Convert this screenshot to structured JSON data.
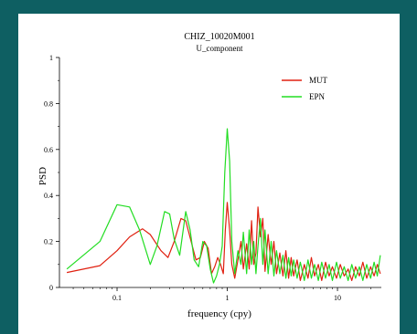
{
  "colors": {
    "background": "#0e5f62",
    "panel": "#ffffff",
    "mut": "#e02010",
    "epn": "#22dd22"
  },
  "chart_data": {
    "type": "line",
    "title": "CHIZ_10020M001",
    "subtitle": "U_component",
    "xlabel": "frequency (cpy)",
    "ylabel": "PSD",
    "xscale": "log",
    "xlim": [
      0.03,
      25
    ],
    "ylim": [
      0,
      1
    ],
    "yticks": [
      0,
      0.2,
      0.4,
      0.6,
      0.8,
      1
    ],
    "ytick_labels": [
      "0",
      "0.2",
      "0.4",
      "0.6",
      "0.8",
      "1"
    ],
    "xticks": [
      0.1,
      1,
      10
    ],
    "xtick_labels": [
      "0.1",
      "1",
      "10"
    ],
    "grid": false,
    "legend_position": "top-right",
    "series": [
      {
        "name": "MUT",
        "color": "#e02010",
        "points": [
          [
            0.035,
            0.065
          ],
          [
            0.07,
            0.095
          ],
          [
            0.1,
            0.16
          ],
          [
            0.13,
            0.22
          ],
          [
            0.17,
            0.255
          ],
          [
            0.2,
            0.23
          ],
          [
            0.25,
            0.16
          ],
          [
            0.29,
            0.13
          ],
          [
            0.33,
            0.2
          ],
          [
            0.38,
            0.3
          ],
          [
            0.42,
            0.29
          ],
          [
            0.47,
            0.2
          ],
          [
            0.52,
            0.12
          ],
          [
            0.57,
            0.13
          ],
          [
            0.62,
            0.2
          ],
          [
            0.67,
            0.17
          ],
          [
            0.72,
            0.06
          ],
          [
            0.77,
            0.09
          ],
          [
            0.82,
            0.13
          ],
          [
            0.87,
            0.1
          ],
          [
            0.92,
            0.06
          ],
          [
            0.96,
            0.25
          ],
          [
            1.0,
            0.37
          ],
          [
            1.05,
            0.25
          ],
          [
            1.1,
            0.1
          ],
          [
            1.17,
            0.04
          ],
          [
            1.25,
            0.12
          ],
          [
            1.33,
            0.2
          ],
          [
            1.4,
            0.08
          ],
          [
            1.5,
            0.19
          ],
          [
            1.58,
            0.08
          ],
          [
            1.66,
            0.29
          ],
          [
            1.74,
            0.1
          ],
          [
            1.82,
            0.15
          ],
          [
            1.9,
            0.35
          ],
          [
            2.0,
            0.22
          ],
          [
            2.1,
            0.3
          ],
          [
            2.2,
            0.07
          ],
          [
            2.35,
            0.23
          ],
          [
            2.5,
            0.1
          ],
          [
            2.65,
            0.2
          ],
          [
            2.8,
            0.06
          ],
          [
            3.0,
            0.15
          ],
          [
            3.2,
            0.05
          ],
          [
            3.4,
            0.16
          ],
          [
            3.6,
            0.04
          ],
          [
            3.8,
            0.13
          ],
          [
            4.0,
            0.05
          ],
          [
            4.3,
            0.12
          ],
          [
            4.6,
            0.03
          ],
          [
            5.0,
            0.1
          ],
          [
            5.4,
            0.04
          ],
          [
            5.8,
            0.13
          ],
          [
            6.2,
            0.05
          ],
          [
            6.7,
            0.1
          ],
          [
            7.2,
            0.03
          ],
          [
            7.8,
            0.11
          ],
          [
            8.4,
            0.05
          ],
          [
            9.0,
            0.09
          ],
          [
            9.8,
            0.04
          ],
          [
            10.6,
            0.1
          ],
          [
            11.5,
            0.05
          ],
          [
            12.5,
            0.08
          ],
          [
            13.5,
            0.03
          ],
          [
            14.6,
            0.09
          ],
          [
            15.8,
            0.05
          ],
          [
            17.0,
            0.11
          ],
          [
            18.4,
            0.04
          ],
          [
            20.0,
            0.09
          ],
          [
            21.5,
            0.05
          ],
          [
            23.0,
            0.1
          ],
          [
            24.5,
            0.06
          ]
        ]
      },
      {
        "name": "EPN",
        "color": "#22dd22",
        "points": [
          [
            0.035,
            0.08
          ],
          [
            0.07,
            0.2
          ],
          [
            0.1,
            0.36
          ],
          [
            0.13,
            0.35
          ],
          [
            0.16,
            0.25
          ],
          [
            0.2,
            0.1
          ],
          [
            0.23,
            0.18
          ],
          [
            0.27,
            0.33
          ],
          [
            0.3,
            0.32
          ],
          [
            0.33,
            0.21
          ],
          [
            0.37,
            0.14
          ],
          [
            0.42,
            0.33
          ],
          [
            0.46,
            0.25
          ],
          [
            0.5,
            0.12
          ],
          [
            0.55,
            0.09
          ],
          [
            0.6,
            0.2
          ],
          [
            0.65,
            0.18
          ],
          [
            0.7,
            0.08
          ],
          [
            0.75,
            0.02
          ],
          [
            0.8,
            0.05
          ],
          [
            0.85,
            0.1
          ],
          [
            0.9,
            0.18
          ],
          [
            0.95,
            0.5
          ],
          [
            1.0,
            0.69
          ],
          [
            1.05,
            0.55
          ],
          [
            1.1,
            0.2
          ],
          [
            1.17,
            0.06
          ],
          [
            1.25,
            0.16
          ],
          [
            1.33,
            0.1
          ],
          [
            1.4,
            0.24
          ],
          [
            1.5,
            0.06
          ],
          [
            1.58,
            0.25
          ],
          [
            1.66,
            0.1
          ],
          [
            1.74,
            0.2
          ],
          [
            1.82,
            0.06
          ],
          [
            1.9,
            0.18
          ],
          [
            2.0,
            0.3
          ],
          [
            2.1,
            0.1
          ],
          [
            2.2,
            0.25
          ],
          [
            2.35,
            0.06
          ],
          [
            2.5,
            0.2
          ],
          [
            2.65,
            0.05
          ],
          [
            2.8,
            0.16
          ],
          [
            3.0,
            0.06
          ],
          [
            3.2,
            0.14
          ],
          [
            3.4,
            0.04
          ],
          [
            3.6,
            0.13
          ],
          [
            3.8,
            0.05
          ],
          [
            4.0,
            0.12
          ],
          [
            4.3,
            0.04
          ],
          [
            4.6,
            0.11
          ],
          [
            5.0,
            0.03
          ],
          [
            5.4,
            0.12
          ],
          [
            5.8,
            0.04
          ],
          [
            6.2,
            0.1
          ],
          [
            6.7,
            0.03
          ],
          [
            7.2,
            0.11
          ],
          [
            7.8,
            0.04
          ],
          [
            8.4,
            0.1
          ],
          [
            9.0,
            0.03
          ],
          [
            9.8,
            0.11
          ],
          [
            10.6,
            0.04
          ],
          [
            11.5,
            0.09
          ],
          [
            12.5,
            0.03
          ],
          [
            13.5,
            0.1
          ],
          [
            14.6,
            0.04
          ],
          [
            15.8,
            0.09
          ],
          [
            17.0,
            0.03
          ],
          [
            18.4,
            0.1
          ],
          [
            20.0,
            0.04
          ],
          [
            21.5,
            0.11
          ],
          [
            23.0,
            0.05
          ],
          [
            24.5,
            0.14
          ]
        ]
      }
    ]
  }
}
